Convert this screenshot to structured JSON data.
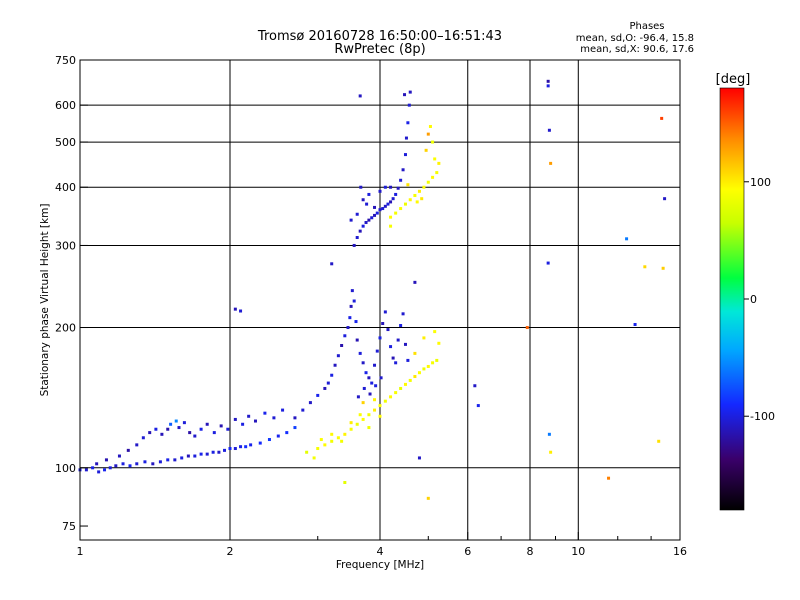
{
  "title": "Tromsø 20160728 16:50:00–16:51:43",
  "subtitle": "RwPretec (8p)",
  "stats": {
    "heading": "Phases",
    "line_o": "mean, sd,O: -96.4, 15.8",
    "line_x": "mean, sd,X:  90.6, 17.6"
  },
  "colorbar": {
    "unit": "[deg]",
    "ticks": [
      {
        "value": 100,
        "label": "100"
      },
      {
        "value": 0,
        "label": "0"
      },
      {
        "value": -100,
        "label": "-100"
      }
    ],
    "range": [
      -180,
      180
    ]
  },
  "chart_data": {
    "type": "scatter",
    "xlabel": "Frequency [MHz]",
    "ylabel": "Stationary phase Virtual Height [km]",
    "xscale": "log",
    "yscale": "log",
    "xlim": [
      1,
      16
    ],
    "ylim": [
      70,
      750
    ],
    "xticks": [
      {
        "value": 1,
        "label": "1"
      },
      {
        "value": 2,
        "label": "2"
      },
      {
        "value": 4,
        "label": "4"
      },
      {
        "value": 6,
        "label": "6"
      },
      {
        "value": 8,
        "label": "8"
      },
      {
        "value": 10,
        "label": "10"
      },
      {
        "value": 16,
        "label": "16"
      }
    ],
    "yticks": [
      {
        "value": 75,
        "label": "75"
      },
      {
        "value": 100,
        "label": "100"
      },
      {
        "value": 200,
        "label": "200"
      },
      {
        "value": 300,
        "label": "300"
      },
      {
        "value": 400,
        "label": "400"
      },
      {
        "value": 500,
        "label": "500"
      },
      {
        "value": 600,
        "label": "600"
      },
      {
        "value": 750,
        "label": "750"
      }
    ],
    "vgrid": [
      2,
      4,
      6,
      8,
      10
    ],
    "hgrid": [
      100,
      200,
      300,
      400,
      500,
      600
    ],
    "series": [
      {
        "points": [
          [
            1.0,
            99,
            -100
          ],
          [
            1.03,
            99,
            -105
          ],
          [
            1.06,
            100,
            -98
          ],
          [
            1.09,
            98,
            -102
          ],
          [
            1.12,
            99,
            -95
          ],
          [
            1.15,
            100,
            -100
          ],
          [
            1.18,
            101,
            -108
          ],
          [
            1.22,
            102,
            -100
          ],
          [
            1.26,
            101,
            -96
          ],
          [
            1.3,
            102,
            -104
          ],
          [
            1.35,
            103,
            -99
          ],
          [
            1.4,
            102,
            -110
          ],
          [
            1.45,
            103,
            -102
          ],
          [
            1.5,
            104,
            -97
          ],
          [
            1.55,
            104,
            -105
          ],
          [
            1.6,
            105,
            -100
          ],
          [
            1.65,
            106,
            -112
          ],
          [
            1.7,
            106,
            -101
          ],
          [
            1.75,
            107,
            -96
          ],
          [
            1.8,
            107,
            -104
          ],
          [
            1.85,
            108,
            -99
          ],
          [
            1.9,
            108,
            -107
          ],
          [
            1.95,
            109,
            -100
          ],
          [
            2.0,
            110,
            -93
          ],
          [
            2.05,
            110,
            -102
          ],
          [
            2.1,
            111,
            -98
          ],
          [
            2.15,
            111,
            -88
          ],
          [
            2.2,
            112,
            -96
          ],
          [
            2.3,
            113,
            -90
          ],
          [
            2.4,
            115,
            -84
          ],
          [
            2.5,
            117,
            -95
          ],
          [
            2.6,
            119,
            -88
          ],
          [
            2.7,
            122,
            -82
          ],
          [
            1.08,
            102,
            -112
          ],
          [
            1.13,
            104,
            -115
          ],
          [
            1.2,
            106,
            -110
          ],
          [
            1.25,
            109,
            -118
          ],
          [
            1.3,
            112,
            -108
          ],
          [
            1.34,
            116,
            -104
          ],
          [
            1.38,
            119,
            -113
          ],
          [
            1.42,
            121,
            -99
          ],
          [
            1.46,
            118,
            -112
          ],
          [
            1.5,
            121,
            -116
          ],
          [
            1.52,
            124,
            -70
          ],
          [
            1.56,
            126,
            -55
          ],
          [
            1.58,
            122,
            -108
          ],
          [
            1.62,
            125,
            -102
          ],
          [
            1.66,
            119,
            -118
          ],
          [
            1.7,
            117,
            -106
          ],
          [
            1.75,
            121,
            -98
          ],
          [
            1.8,
            124,
            -112
          ],
          [
            1.86,
            119,
            -100
          ],
          [
            1.92,
            123,
            -115
          ],
          [
            1.98,
            121,
            -102
          ],
          [
            2.05,
            127,
            -109
          ],
          [
            2.12,
            124,
            -99
          ],
          [
            2.18,
            129,
            -107
          ],
          [
            2.25,
            126,
            -111
          ],
          [
            2.35,
            131,
            -96
          ],
          [
            2.45,
            128,
            -104
          ],
          [
            2.55,
            133,
            -100
          ],
          [
            2.7,
            128,
            -110
          ],
          [
            2.8,
            133,
            -104
          ],
          [
            2.9,
            138,
            -108
          ],
          [
            3.0,
            143,
            -96
          ],
          [
            3.1,
            148,
            -112
          ],
          [
            3.15,
            152,
            -103
          ],
          [
            3.2,
            158,
            -99
          ],
          [
            3.25,
            166,
            -110
          ],
          [
            3.3,
            174,
            -105
          ],
          [
            3.35,
            183,
            -116
          ],
          [
            3.4,
            192,
            -101
          ],
          [
            3.45,
            200,
            -108
          ],
          [
            3.48,
            210,
            -98
          ],
          [
            3.5,
            222,
            -112
          ],
          [
            3.52,
            240,
            -105
          ],
          [
            3.55,
            228,
            -101
          ],
          [
            3.58,
            206,
            -95
          ],
          [
            3.6,
            188,
            -114
          ],
          [
            3.65,
            176,
            -102
          ],
          [
            3.7,
            168,
            -108
          ],
          [
            3.75,
            160,
            -97
          ],
          [
            3.8,
            156,
            -111
          ],
          [
            3.85,
            152,
            -100
          ],
          [
            3.9,
            166,
            -106
          ],
          [
            3.95,
            178,
            -103
          ],
          [
            4.0,
            190,
            -98
          ],
          [
            4.05,
            204,
            -112
          ],
          [
            4.1,
            216,
            -104
          ],
          [
            4.15,
            198,
            -109
          ],
          [
            4.2,
            182,
            -100
          ],
          [
            4.25,
            172,
            -113
          ],
          [
            4.3,
            168,
            -102
          ],
          [
            4.35,
            188,
            -107
          ],
          [
            4.4,
            202,
            -99
          ],
          [
            4.45,
            214,
            -105
          ],
          [
            4.5,
            184,
            -110
          ],
          [
            4.55,
            170,
            -101
          ],
          [
            3.62,
            142,
            -108
          ],
          [
            3.72,
            148,
            -104
          ],
          [
            3.82,
            144,
            -112
          ],
          [
            3.92,
            150,
            -100
          ],
          [
            4.02,
            156,
            -106
          ],
          [
            3.55,
            300,
            -110
          ],
          [
            3.6,
            312,
            -105
          ],
          [
            3.65,
            322,
            -112
          ],
          [
            3.7,
            330,
            -100
          ],
          [
            3.75,
            336,
            -108
          ],
          [
            3.8,
            340,
            -115
          ],
          [
            3.85,
            344,
            -104
          ],
          [
            3.9,
            348,
            -111
          ],
          [
            3.95,
            352,
            -99
          ],
          [
            4.0,
            358,
            -106
          ],
          [
            4.05,
            360,
            -103
          ],
          [
            4.1,
            364,
            -109
          ],
          [
            4.15,
            368,
            -101
          ],
          [
            4.2,
            372,
            -113
          ],
          [
            4.25,
            378,
            -105
          ],
          [
            4.3,
            386,
            -100
          ],
          [
            4.35,
            398,
            -110
          ],
          [
            4.4,
            414,
            -104
          ],
          [
            4.45,
            436,
            -108
          ],
          [
            4.5,
            470,
            -102
          ],
          [
            4.52,
            510,
            -106
          ],
          [
            4.55,
            550,
            -98
          ],
          [
            4.58,
            600,
            -104
          ],
          [
            4.6,
            640,
            -110
          ],
          [
            4.48,
            632,
            -112
          ],
          [
            3.6,
            350,
            -104
          ],
          [
            3.7,
            376,
            -110
          ],
          [
            3.8,
            386,
            -100
          ],
          [
            3.9,
            362,
            -112
          ],
          [
            4.0,
            392,
            -106
          ],
          [
            4.1,
            400,
            -102
          ],
          [
            3.66,
            400,
            -108
          ],
          [
            3.76,
            368,
            -104
          ],
          [
            4.2,
            400,
            -110
          ],
          [
            3.5,
            340,
            -106
          ],
          [
            3.2,
            274,
            -108
          ],
          [
            2.05,
            219,
            -112
          ],
          [
            2.1,
            217,
            -104
          ],
          [
            3.65,
            628,
            -110
          ],
          [
            8.7,
            675,
            -118
          ],
          [
            8.7,
            660,
            -100
          ],
          [
            8.75,
            530,
            -106
          ],
          [
            8.7,
            275,
            -100
          ],
          [
            8.75,
            118,
            -60
          ],
          [
            12.5,
            310,
            -60
          ],
          [
            13.0,
            203,
            -96
          ],
          [
            14.9,
            378,
            -108
          ],
          [
            6.2,
            150,
            -108
          ],
          [
            6.3,
            136,
            -96
          ],
          [
            4.8,
            105,
            -108
          ],
          [
            4.7,
            250,
            -112
          ]
        ]
      },
      {
        "points": [
          [
            3.0,
            110,
            90
          ],
          [
            3.1,
            112,
            95
          ],
          [
            3.2,
            114,
            88
          ],
          [
            3.3,
            116,
            92
          ],
          [
            3.4,
            118,
            98
          ],
          [
            3.5,
            121,
            90
          ],
          [
            3.6,
            124,
            85
          ],
          [
            3.7,
            127,
            95
          ],
          [
            3.8,
            130,
            88
          ],
          [
            3.9,
            133,
            100
          ],
          [
            4.0,
            136,
            92
          ],
          [
            4.1,
            139,
            86
          ],
          [
            4.2,
            142,
            96
          ],
          [
            4.3,
            145,
            90
          ],
          [
            4.4,
            148,
            82
          ],
          [
            4.5,
            151,
            95
          ],
          [
            4.6,
            154,
            88
          ],
          [
            4.7,
            157,
            102
          ],
          [
            4.8,
            160,
            92
          ],
          [
            4.9,
            163,
            86
          ],
          [
            5.0,
            165,
            96
          ],
          [
            5.1,
            168,
            90
          ],
          [
            5.2,
            170,
            84
          ],
          [
            5.25,
            185,
            95
          ],
          [
            5.15,
            196,
            92
          ],
          [
            4.9,
            190,
            100
          ],
          [
            4.7,
            176,
            105
          ],
          [
            3.7,
            138,
            110
          ],
          [
            3.9,
            140,
            98
          ],
          [
            2.85,
            108,
            80
          ],
          [
            2.95,
            105,
            88
          ],
          [
            3.05,
            115,
            92
          ],
          [
            3.2,
            118,
            96
          ],
          [
            3.35,
            114,
            88
          ],
          [
            3.5,
            125,
            100
          ],
          [
            3.65,
            130,
            92
          ],
          [
            3.8,
            122,
            86
          ],
          [
            4.0,
            129,
            95
          ],
          [
            4.2,
            345,
            95
          ],
          [
            4.3,
            352,
            88
          ],
          [
            4.4,
            360,
            92
          ],
          [
            4.5,
            368,
            85
          ],
          [
            4.6,
            376,
            96
          ],
          [
            4.7,
            384,
            90
          ],
          [
            4.8,
            392,
            100
          ],
          [
            4.9,
            400,
            92
          ],
          [
            5.0,
            410,
            88
          ],
          [
            5.1,
            420,
            96
          ],
          [
            5.2,
            430,
            90
          ],
          [
            5.15,
            460,
            92
          ],
          [
            5.1,
            500,
            85
          ],
          [
            5.05,
            540,
            95
          ],
          [
            5.0,
            520,
            130
          ],
          [
            4.95,
            480,
            110
          ],
          [
            5.25,
            450,
            98
          ],
          [
            4.85,
            378,
            102
          ],
          [
            5.0,
            86,
            110
          ],
          [
            3.4,
            93,
            80
          ],
          [
            8.8,
            108,
            100
          ],
          [
            8.8,
            450,
            130
          ],
          [
            14.5,
            114,
            105
          ],
          [
            14.7,
            562,
            160
          ],
          [
            13.6,
            270,
            108
          ],
          [
            14.8,
            268,
            112
          ],
          [
            7.9,
            200,
            150
          ],
          [
            11.5,
            95,
            140
          ],
          [
            4.55,
            405,
            104
          ],
          [
            4.75,
            372,
            96
          ],
          [
            4.2,
            330,
            90
          ]
        ]
      }
    ]
  }
}
